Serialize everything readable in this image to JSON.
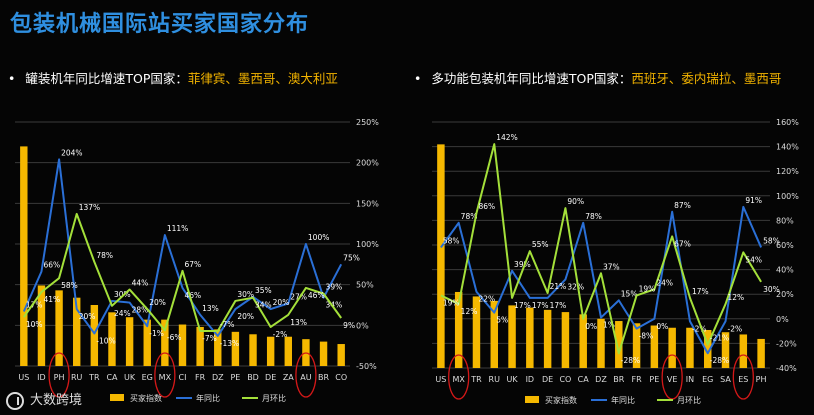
{
  "page_title": "包装机械国际站买家国家分布",
  "left_subtitle": {
    "prefix": "罐装机年同比增速TOP国家：",
    "highlight": "菲律宾、墨西哥、澳大利亚"
  },
  "right_subtitle": {
    "prefix": "多功能包装机年同比增速TOP国家：",
    "highlight": "西班牙、委内瑞拉、墨西哥"
  },
  "brand": "大数跨境",
  "colors": {
    "bar": "#f5b800",
    "yoy": "#2a6fd6",
    "mom": "#a4e03a",
    "circle": "#d31818",
    "grid": "#3a3a3a",
    "title": "#2f8fe0"
  },
  "chart_data": [
    {
      "type": "bar+line",
      "title": "罐装机年同比增速TOP国家：菲律宾、墨西哥、澳大利亚",
      "categories": [
        "US",
        "ID",
        "PH",
        "RU",
        "TR",
        "CA",
        "UK",
        "EG",
        "MX",
        "CI",
        "FR",
        "DZ",
        "PE",
        "BD",
        "DE",
        "ZA",
        "AU",
        "BR",
        "CO"
      ],
      "bar_series": {
        "name": "买家指数",
        "values": [
          90,
          33,
          31,
          28,
          25,
          22,
          20,
          19,
          19,
          17,
          16,
          15,
          14,
          13,
          12,
          12,
          11,
          10,
          9
        ]
      },
      "bar_ylim": [
        0,
        100
      ],
      "line_series": [
        {
          "name": "年同比",
          "values": [
            17,
            66,
            204,
            20,
            -10,
            30,
            28,
            -1,
            111,
            46,
            13,
            -13,
            20,
            35,
            20,
            27,
            100,
            34,
            75
          ],
          "labels": [
            "17%",
            "66%",
            "204%",
            "20%",
            "-10%",
            "30%",
            "28%",
            "-1%",
            "111%",
            "46%",
            "13%",
            "-13%",
            "20%",
            "35%",
            "20%",
            "27%",
            "100%",
            "34%",
            "75%"
          ]
        },
        {
          "name": "月环比",
          "values": [
            10,
            41,
            58,
            137,
            78,
            24,
            44,
            20,
            -6,
            67,
            -7,
            -7,
            30,
            34,
            -2,
            13,
            46,
            39,
            9
          ],
          "labels": [
            "10%",
            "41%",
            "58%",
            "137%",
            "78%",
            "24%",
            "44%",
            "20%",
            "-6%",
            "67%",
            "-7%",
            "-7%",
            "30%",
            "34%",
            "-2%",
            "13%",
            "46%",
            "39%",
            "9%"
          ]
        }
      ],
      "y2_ticks": [
        "250%",
        "200%",
        "150%",
        "100%",
        "50%",
        "0%",
        "-50%"
      ],
      "y2lim": [
        -50,
        250
      ],
      "highlighted": [
        "PH",
        "MX",
        "AU"
      ],
      "legend": [
        "买家指数",
        "年同比",
        "月环比"
      ]
    },
    {
      "type": "bar+line",
      "title": "多功能包装机年同比增速TOP国家：西班牙、委内瑞拉、墨西哥",
      "categories": [
        "US",
        "MX",
        "TR",
        "RU",
        "UK",
        "ID",
        "DE",
        "CO",
        "CA",
        "DZ",
        "BR",
        "FR",
        "PE",
        "VE",
        "IN",
        "EG",
        "SA",
        "ES",
        "PH"
      ],
      "bar_series": {
        "name": "买家指数",
        "values": [
          100,
          34,
          32,
          30,
          28,
          27,
          26,
          25,
          24,
          22,
          21,
          20,
          19,
          18,
          18,
          17,
          16,
          15,
          13
        ]
      },
      "bar_ylim": [
        0,
        110
      ],
      "line_series": [
        {
          "name": "年同比",
          "values": [
            58,
            78,
            22,
            5,
            39,
            17,
            17,
            32,
            78,
            1,
            15,
            -8,
            0,
            87,
            -2,
            -28,
            -2,
            91,
            58
          ],
          "labels": [
            "58%",
            "78%",
            "22%",
            "5%",
            "39%",
            "17%",
            "17%",
            "32%",
            "78%",
            "1%",
            "15%",
            "-8%",
            "0%",
            "87%",
            "-2%",
            "-28%",
            "-2%",
            "91%",
            "58%"
          ]
        },
        {
          "name": "月环比",
          "values": [
            19,
            12,
            86,
            142,
            17,
            55,
            21,
            90,
            0,
            37,
            -28,
            19,
            24,
            67,
            17,
            -21,
            12,
            54,
            30
          ],
          "labels": [
            "19%",
            "12%",
            "86%",
            "142%",
            "17%",
            "55%",
            "21%",
            "90%",
            "0%",
            "37%",
            "-28%",
            "19%",
            "24%",
            "67%",
            "17%",
            "-21%",
            "12%",
            "54%",
            "30%"
          ]
        }
      ],
      "y2_ticks": [
        "160%",
        "140%",
        "120%",
        "100%",
        "80%",
        "60%",
        "40%",
        "20%",
        "0%",
        "-20%",
        "-40%"
      ],
      "y2lim": [
        -40,
        160
      ],
      "highlighted": [
        "MX",
        "VE",
        "ES"
      ],
      "legend": [
        "买家指数",
        "年同比",
        "月环比"
      ]
    }
  ]
}
